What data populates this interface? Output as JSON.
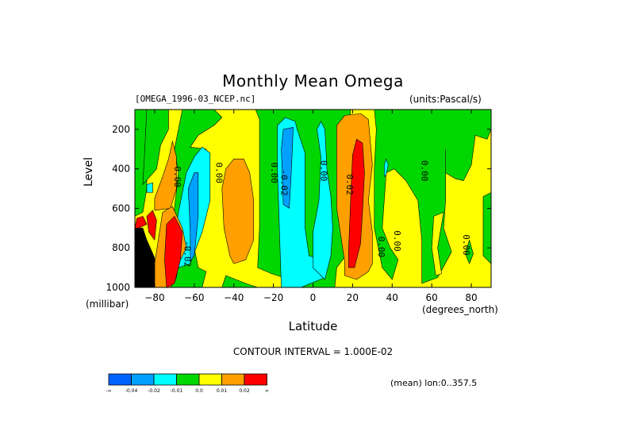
{
  "chart_data": {
    "type": "heatmap",
    "title": "Monthly Mean Omega",
    "subtitle_left": "[OMEGA_1996-03_NCEP.nc]",
    "subtitle_right": "(units:Pascal/s)",
    "xlabel": "Latitude",
    "xunits": "(degrees_north)",
    "ylabel": "Level",
    "yunits": "(millibar)",
    "xlim": [
      -90,
      90
    ],
    "ylim": [
      1000,
      100
    ],
    "x_ticks": [
      -80,
      -60,
      -40,
      -20,
      0,
      20,
      40,
      60,
      80
    ],
    "y_ticks": [
      200,
      400,
      600,
      800,
      1000
    ],
    "contour_interval_label": "CONTOUR INTERVAL = 1.000E-02",
    "footer": "(mean) lon:0..357.5",
    "contour_labels": [
      {
        "text": "0.00",
        "x": -70,
        "y": 440
      },
      {
        "text": "0.00",
        "x": -49,
        "y": 420
      },
      {
        "text": "0.00",
        "x": -21,
        "y": 420
      },
      {
        "text": "-0.02",
        "x": -16,
        "y": 470
      },
      {
        "text": "0.00",
        "x": 4,
        "y": 410
      },
      {
        "text": "0.02",
        "x": 17,
        "y": 480
      },
      {
        "text": "0.00",
        "x": 33,
        "y": 795
      },
      {
        "text": "0.00",
        "x": 41,
        "y": 765
      },
      {
        "text": "0.00",
        "x": 55,
        "y": 410
      },
      {
        "text": "0.00",
        "x": 76,
        "y": 785
      },
      {
        "text": "-0.02",
        "x": -65,
        "y": 830
      }
    ],
    "colorbar": {
      "colors": [
        "#0064ff",
        "#00a0ff",
        "#00ffff",
        "#00d700",
        "#ffff00",
        "#ffa000",
        "#ff0000"
      ],
      "labels": [
        "-∞",
        "-0.04",
        "-0.02",
        "-0.01",
        "0.0",
        "0.01",
        "0.02",
        "∞"
      ]
    },
    "palette": {
      "level_-3": "#0064ff",
      "level_-2": "#00a0ff",
      "level_-1": "#00ffff",
      "level_0": "#00d700",
      "level_1": "#ffff00",
      "level_2": "#ffa000",
      "level_3": "#ff0000",
      "missing": "#000000"
    },
    "regions": [
      {
        "level": 1,
        "points": [
          [
            -90,
            100
          ],
          [
            90,
            100
          ],
          [
            90,
            1000
          ],
          [
            -90,
            1000
          ]
        ]
      },
      {
        "level": 0,
        "points": [
          [
            -90,
            100
          ],
          [
            -84,
            100
          ],
          [
            -84,
            500
          ],
          [
            -86,
            620
          ],
          [
            -90,
            640
          ]
        ]
      },
      {
        "level": 0,
        "points": [
          [
            -84,
            100
          ],
          [
            -73,
            100
          ],
          [
            -73,
            200
          ],
          [
            -77,
            280
          ],
          [
            -79,
            400
          ],
          [
            -86,
            480
          ],
          [
            -85,
            300
          ]
        ]
      },
      {
        "level": 0,
        "points": [
          [
            -66,
            100
          ],
          [
            -50,
            100
          ],
          [
            -46,
            140
          ],
          [
            -50,
            180
          ],
          [
            -58,
            230
          ],
          [
            -62,
            290
          ],
          [
            -54,
            300
          ],
          [
            -54,
            500
          ],
          [
            -56,
            700
          ],
          [
            -60,
            800
          ],
          [
            -58,
            900
          ],
          [
            -54,
            920
          ],
          [
            -56,
            1000
          ],
          [
            -72,
            1000
          ],
          [
            -72,
            950
          ],
          [
            -66,
            880
          ],
          [
            -70,
            760
          ],
          [
            -70,
            600
          ],
          [
            -68,
            420
          ],
          [
            -70,
            300
          ]
        ]
      },
      {
        "level": 0,
        "points": [
          [
            -29,
            100
          ],
          [
            19,
            100
          ],
          [
            18,
            240
          ],
          [
            13,
            400
          ],
          [
            12,
            560
          ],
          [
            16,
            700
          ],
          [
            18,
            820
          ],
          [
            12,
            900
          ],
          [
            11,
            1000
          ],
          [
            -6,
            1000
          ],
          [
            -12,
            960
          ],
          [
            -21,
            930
          ],
          [
            -28,
            900
          ],
          [
            -27,
            700
          ],
          [
            -27,
            500
          ],
          [
            -27,
            300
          ],
          [
            -27,
            150
          ]
        ]
      },
      {
        "level": -1,
        "points": [
          [
            -70,
            740
          ],
          [
            -68,
            620
          ],
          [
            -64,
            420
          ],
          [
            -60,
            340
          ],
          [
            -56,
            290
          ],
          [
            -52,
            320
          ],
          [
            -52,
            560
          ],
          [
            -56,
            720
          ],
          [
            -62,
            880
          ],
          [
            -68,
            900
          ]
        ]
      },
      {
        "level": -2,
        "points": [
          [
            -62,
            720
          ],
          [
            -63,
            500
          ],
          [
            -60,
            420
          ],
          [
            -58,
            420
          ],
          [
            -58,
            640
          ],
          [
            -60,
            840
          ],
          [
            -62,
            870
          ]
        ]
      },
      {
        "level": -1,
        "points": [
          [
            -16,
            1000
          ],
          [
            -17,
            700
          ],
          [
            -18,
            400
          ],
          [
            -18,
            180
          ],
          [
            -14,
            140
          ],
          [
            -9,
            160
          ],
          [
            -8,
            200
          ],
          [
            -4,
            320
          ],
          [
            -4,
            700
          ],
          [
            -2,
            840
          ],
          [
            6,
            860
          ],
          [
            6,
            950
          ],
          [
            -6,
            1000
          ]
        ]
      },
      {
        "level": -2,
        "points": [
          [
            -15,
            580
          ],
          [
            -16,
            300
          ],
          [
            -15,
            200
          ],
          [
            -10,
            190
          ],
          [
            -11,
            420
          ],
          [
            -12,
            600
          ]
        ]
      },
      {
        "level": -1,
        "points": [
          [
            0,
            900
          ],
          [
            0,
            720
          ],
          [
            3,
            560
          ],
          [
            4,
            340
          ],
          [
            2,
            200
          ],
          [
            4,
            160
          ],
          [
            6,
            200
          ],
          [
            7,
            400
          ],
          [
            9,
            540
          ],
          [
            10,
            700
          ],
          [
            9,
            840
          ],
          [
            6,
            960
          ]
        ]
      },
      {
        "level": -1,
        "points": [
          [
            -84,
            480
          ],
          [
            -81,
            470
          ],
          [
            -81,
            520
          ],
          [
            -84,
            520
          ]
        ]
      },
      {
        "level": 0,
        "points": [
          [
            31,
            100
          ],
          [
            90,
            100
          ],
          [
            90,
            200
          ],
          [
            88,
            250
          ],
          [
            82,
            230
          ],
          [
            80,
            380
          ],
          [
            76,
            460
          ],
          [
            72,
            450
          ],
          [
            67,
            420
          ],
          [
            67,
            300
          ],
          [
            67,
            400
          ],
          [
            67,
            560
          ],
          [
            66,
            700
          ],
          [
            70,
            820
          ],
          [
            63,
            950
          ],
          [
            55,
            980
          ],
          [
            55,
            760
          ],
          [
            53,
            560
          ],
          [
            47,
            460
          ],
          [
            41,
            400
          ],
          [
            37,
            420
          ],
          [
            36,
            560
          ],
          [
            35,
            700
          ],
          [
            39,
            800
          ],
          [
            43,
            860
          ],
          [
            40,
            960
          ],
          [
            35,
            900
          ],
          [
            31,
            700
          ],
          [
            31,
            400
          ],
          [
            32,
            200
          ]
        ]
      },
      {
        "level": 0,
        "points": [
          [
            79,
            760
          ],
          [
            81,
            830
          ],
          [
            79,
            880
          ],
          [
            77,
            830
          ]
        ]
      },
      {
        "level": 0,
        "points": [
          [
            86,
            540
          ],
          [
            90,
            520
          ],
          [
            90,
            880
          ],
          [
            86,
            840
          ]
        ]
      },
      {
        "level": 0,
        "points": [
          [
            -44,
            940
          ],
          [
            -34,
            980
          ],
          [
            -28,
            1000
          ],
          [
            -46,
            1000
          ]
        ]
      },
      {
        "level": 2,
        "points": [
          [
            -80,
            550
          ],
          [
            -76,
            440
          ],
          [
            -73,
            350
          ],
          [
            -71,
            260
          ],
          [
            -69,
            340
          ],
          [
            -69,
            500
          ],
          [
            -72,
            600
          ],
          [
            -80,
            610
          ]
        ]
      },
      {
        "level": 2,
        "points": [
          [
            -42,
            840
          ],
          [
            -45,
            700
          ],
          [
            -46,
            500
          ],
          [
            -44,
            400
          ],
          [
            -40,
            350
          ],
          [
            -35,
            350
          ],
          [
            -32,
            420
          ],
          [
            -30,
            560
          ],
          [
            -30,
            760
          ],
          [
            -34,
            860
          ],
          [
            -40,
            880
          ]
        ]
      },
      {
        "level": 2,
        "points": [
          [
            16,
            870
          ],
          [
            12,
            600
          ],
          [
            12,
            400
          ],
          [
            12,
            180
          ],
          [
            16,
            130
          ],
          [
            24,
            120
          ],
          [
            28,
            150
          ],
          [
            30,
            380
          ],
          [
            28,
            560
          ],
          [
            30,
            720
          ],
          [
            30,
            880
          ],
          [
            28,
            920
          ],
          [
            22,
            960
          ],
          [
            16,
            940
          ]
        ]
      },
      {
        "level": 3,
        "points": [
          [
            18,
            810
          ],
          [
            19,
            560
          ],
          [
            20,
            330
          ],
          [
            22,
            250
          ],
          [
            25,
            270
          ],
          [
            26,
            420
          ],
          [
            25,
            620
          ],
          [
            24,
            780
          ],
          [
            21,
            900
          ],
          [
            18,
            900
          ]
        ]
      },
      {
        "level": 2,
        "points": [
          [
            -76,
            620
          ],
          [
            -71,
            590
          ],
          [
            -66,
            700
          ],
          [
            -64,
            800
          ],
          [
            -68,
            880
          ],
          [
            -69,
            950
          ],
          [
            -72,
            1000
          ],
          [
            -80,
            1000
          ],
          [
            -80,
            880
          ]
        ]
      },
      {
        "level": 3,
        "points": [
          [
            -74,
            680
          ],
          [
            -70,
            640
          ],
          [
            -66,
            720
          ],
          [
            -67,
            860
          ],
          [
            -70,
            980
          ],
          [
            -74,
            1000
          ],
          [
            -75,
            860
          ]
        ]
      },
      {
        "level": 3,
        "points": [
          [
            -89,
            650
          ],
          [
            -86,
            640
          ],
          [
            -84,
            680
          ],
          [
            -88,
            700
          ],
          [
            -90,
            700
          ]
        ]
      },
      {
        "level": 3,
        "points": [
          [
            -84,
            640
          ],
          [
            -81,
            610
          ],
          [
            -79,
            660
          ],
          [
            -80,
            760
          ],
          [
            -83,
            720
          ]
        ]
      },
      {
        "level": 1,
        "points": [
          [
            66,
            620
          ],
          [
            63,
            800
          ],
          [
            65,
            930
          ],
          [
            62,
            940
          ],
          [
            60,
            800
          ],
          [
            61,
            640
          ]
        ]
      },
      {
        "level": -1,
        "points": [
          [
            36,
            380
          ],
          [
            37,
            350
          ],
          [
            38,
            380
          ],
          [
            37,
            430
          ],
          [
            36,
            440
          ]
        ]
      },
      {
        "level": "missing",
        "points": [
          [
            -90,
            700
          ],
          [
            -90,
            1000
          ],
          [
            -80,
            1000
          ],
          [
            -80,
            850
          ],
          [
            -84,
            760
          ],
          [
            -86,
            700
          ]
        ]
      },
      {
        "level": "missing",
        "points": [
          [
            -86,
            700
          ],
          [
            -86,
            840
          ],
          [
            -88,
            840
          ],
          [
            -88,
            760
          ]
        ]
      }
    ]
  }
}
